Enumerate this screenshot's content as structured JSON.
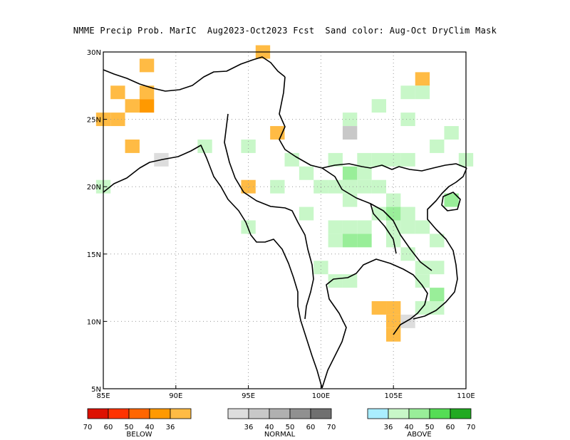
{
  "title": "NMME Precip Prob. MarIC  Aug2023-Oct2023 Fcst  Sand color: Aug-Oct DryClim Mask",
  "axes": {
    "lon_ticks": [
      "85E",
      "90E",
      "95E",
      "100E",
      "105E",
      "110E"
    ],
    "lat_ticks": [
      "30N",
      "25N",
      "20N",
      "15N",
      "10N",
      "5N"
    ]
  },
  "colors": {
    "below": [
      "#dd1100",
      "#ff3300",
      "#ff6600",
      "#ff9900",
      "#ffbb44"
    ],
    "normal": [
      "#dddddd",
      "#c8c8c8",
      "#b0b0b0",
      "#909090",
      "#707070"
    ],
    "above": [
      "#aaeeff",
      "#c8f7c8",
      "#99ee99",
      "#55dd55",
      "#22aa22"
    ]
  },
  "legend": {
    "below": {
      "ticks": [
        "70",
        "60",
        "50",
        "40",
        "36"
      ],
      "label": "BELOW"
    },
    "normal": {
      "ticks": [
        "36",
        "40",
        "50",
        "60",
        "70"
      ],
      "label": "NORMAL"
    },
    "above": {
      "ticks": [
        "36",
        "40",
        "50",
        "60",
        "70"
      ],
      "label": "ABOVE"
    }
  },
  "cells": [
    {
      "lon": 96,
      "lat": 30,
      "c": "b40"
    },
    {
      "lon": 88,
      "lat": 29,
      "c": "b40"
    },
    {
      "lon": 107,
      "lat": 28,
      "c": "b40"
    },
    {
      "lon": 86,
      "lat": 27,
      "c": "b40"
    },
    {
      "lon": 88,
      "lat": 27,
      "c": "b40"
    },
    {
      "lon": 106,
      "lat": 27,
      "c": "a36"
    },
    {
      "lon": 107,
      "lat": 27,
      "c": "a36"
    },
    {
      "lon": 87,
      "lat": 26,
      "c": "b40"
    },
    {
      "lon": 88,
      "lat": 26,
      "c": "b50"
    },
    {
      "lon": 104,
      "lat": 26,
      "c": "a36"
    },
    {
      "lon": 85,
      "lat": 25,
      "c": "b40"
    },
    {
      "lon": 86,
      "lat": 25,
      "c": "b40"
    },
    {
      "lon": 102,
      "lat": 25,
      "c": "a36"
    },
    {
      "lon": 106,
      "lat": 25,
      "c": "a36"
    },
    {
      "lon": 97,
      "lat": 24,
      "c": "b40"
    },
    {
      "lon": 102,
      "lat": 24,
      "c": "n40"
    },
    {
      "lon": 109,
      "lat": 24,
      "c": "a36"
    },
    {
      "lon": 87,
      "lat": 23,
      "c": "b40"
    },
    {
      "lon": 92,
      "lat": 23,
      "c": "a36"
    },
    {
      "lon": 95,
      "lat": 23,
      "c": "a36"
    },
    {
      "lon": 108,
      "lat": 23,
      "c": "a36"
    },
    {
      "lon": 89,
      "lat": 22,
      "c": "n36"
    },
    {
      "lon": 98,
      "lat": 22,
      "c": "a36"
    },
    {
      "lon": 101,
      "lat": 22,
      "c": "a36"
    },
    {
      "lon": 103,
      "lat": 22,
      "c": "a36"
    },
    {
      "lon": 104,
      "lat": 22,
      "c": "a36"
    },
    {
      "lon": 105,
      "lat": 22,
      "c": "a36"
    },
    {
      "lon": 106,
      "lat": 22,
      "c": "a36"
    },
    {
      "lon": 110,
      "lat": 22,
      "c": "a36"
    },
    {
      "lon": 99,
      "lat": 21,
      "c": "a36"
    },
    {
      "lon": 102,
      "lat": 21,
      "c": "a40"
    },
    {
      "lon": 103,
      "lat": 21,
      "c": "a36"
    },
    {
      "lon": 95,
      "lat": 20,
      "c": "b40"
    },
    {
      "lon": 97,
      "lat": 20,
      "c": "a36"
    },
    {
      "lon": 100,
      "lat": 20,
      "c": "a36"
    },
    {
      "lon": 101,
      "lat": 20,
      "c": "a36"
    },
    {
      "lon": 102,
      "lat": 20,
      "c": "a36"
    },
    {
      "lon": 103,
      "lat": 20,
      "c": "a36"
    },
    {
      "lon": 104,
      "lat": 20,
      "c": "a36"
    },
    {
      "lon": 85,
      "lat": 20,
      "c": "a36"
    },
    {
      "lon": 102,
      "lat": 19,
      "c": "a36"
    },
    {
      "lon": 105,
      "lat": 19,
      "c": "a36"
    },
    {
      "lon": 109,
      "lat": 19,
      "c": "a40"
    },
    {
      "lon": 99,
      "lat": 18,
      "c": "a36"
    },
    {
      "lon": 104,
      "lat": 18,
      "c": "a36"
    },
    {
      "lon": 105,
      "lat": 18,
      "c": "a40"
    },
    {
      "lon": 106,
      "lat": 18,
      "c": "a36"
    },
    {
      "lon": 95,
      "lat": 17,
      "c": "a36"
    },
    {
      "lon": 101,
      "lat": 17,
      "c": "a36"
    },
    {
      "lon": 102,
      "lat": 17,
      "c": "a36"
    },
    {
      "lon": 103,
      "lat": 17,
      "c": "a36"
    },
    {
      "lon": 105,
      "lat": 17,
      "c": "a36"
    },
    {
      "lon": 106,
      "lat": 17,
      "c": "a36"
    },
    {
      "lon": 107,
      "lat": 17,
      "c": "a36"
    },
    {
      "lon": 101,
      "lat": 16,
      "c": "a36"
    },
    {
      "lon": 102,
      "lat": 16,
      "c": "a40"
    },
    {
      "lon": 103,
      "lat": 16,
      "c": "a40"
    },
    {
      "lon": 105,
      "lat": 16,
      "c": "a36"
    },
    {
      "lon": 108,
      "lat": 16,
      "c": "a36"
    },
    {
      "lon": 106,
      "lat": 15,
      "c": "a36"
    },
    {
      "lon": 100,
      "lat": 14,
      "c": "a36"
    },
    {
      "lon": 107,
      "lat": 14,
      "c": "a36"
    },
    {
      "lon": 108,
      "lat": 14,
      "c": "a36"
    },
    {
      "lon": 101,
      "lat": 13,
      "c": "a36"
    },
    {
      "lon": 102,
      "lat": 13,
      "c": "a36"
    },
    {
      "lon": 107,
      "lat": 13,
      "c": "a36"
    },
    {
      "lon": 108,
      "lat": 12,
      "c": "a40"
    },
    {
      "lon": 104,
      "lat": 11,
      "c": "b40"
    },
    {
      "lon": 105,
      "lat": 11,
      "c": "b40"
    },
    {
      "lon": 107,
      "lat": 11,
      "c": "a36"
    },
    {
      "lon": 108,
      "lat": 11,
      "c": "a36"
    },
    {
      "lon": 105,
      "lat": 10,
      "c": "b40"
    },
    {
      "lon": 106,
      "lat": 10,
      "c": "n36"
    },
    {
      "lon": 105,
      "lat": 9,
      "c": "b40"
    }
  ]
}
